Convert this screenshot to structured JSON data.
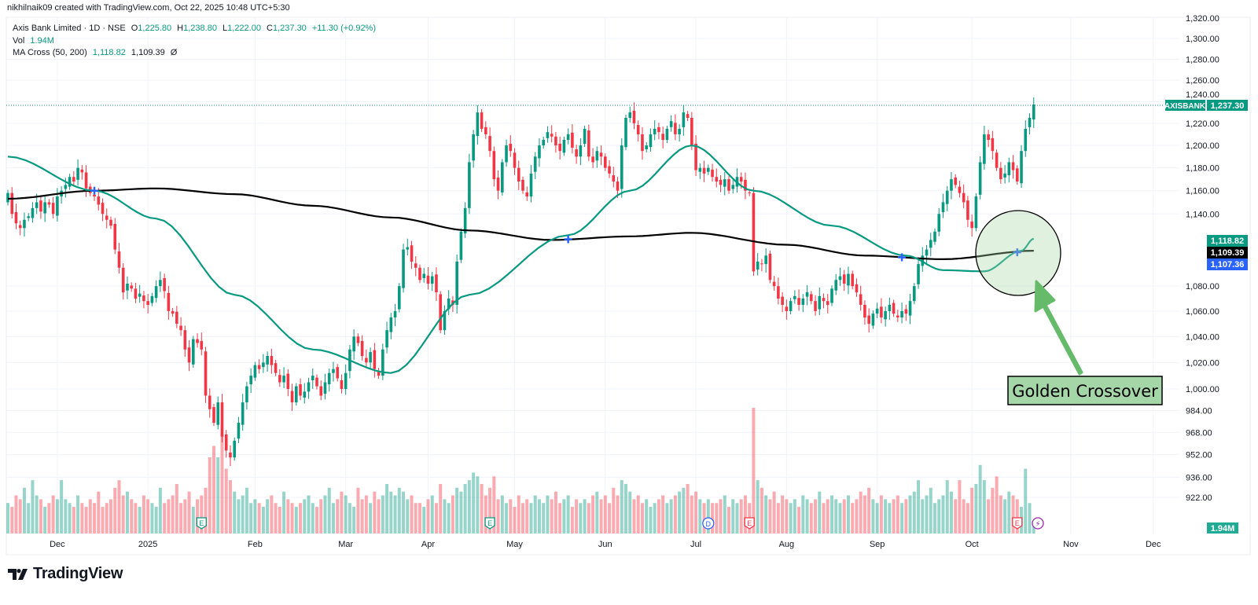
{
  "credit": "nikhilnaik09 created with TradingView.com, Oct 22, 2025 10:48 UTC+5:30",
  "legend": {
    "symbol": "Axis Bank Limited · 1D · NSE",
    "o_label": "O",
    "o": "1,225.80",
    "h_label": "H",
    "h": "1,238.80",
    "l_label": "L",
    "l": "1,222.00",
    "c_label": "C",
    "c": "1,237.30",
    "change": "+11.30 (+0.92%)",
    "vol_label": "Vol",
    "vol": "1.94M",
    "ma_label": "MA Cross (50, 200)",
    "ma50": "1,118.82",
    "ma200": "1,109.39",
    "ma_icon": "Ø"
  },
  "price_badges": {
    "symbol_tag": "AXISBANK",
    "last": "1,237.30",
    "ma50": "1,118.82",
    "ma200": "1,109.39",
    "blue": "1,107.36",
    "volume": "1.94M"
  },
  "annotation": {
    "text": "Golden Crossover"
  },
  "brand": "TradingView",
  "colors": {
    "up": "#089981",
    "down": "#f23645",
    "ma50": "#089981",
    "ma200": "#000000",
    "cross": "#2962ff",
    "annot_fill": "#a5d6a7",
    "arrow": "#66bb6a"
  },
  "chart_data": {
    "type": "candlestick",
    "title": "Axis Bank Limited · 1D · NSE",
    "scale": "log",
    "ylim": [
      905,
      1322
    ],
    "yticks": [
      "1,320.00",
      "1,300.00",
      "1,280.00",
      "1,260.00",
      "1,240.00",
      "1,220.00",
      "1,200.00",
      "1,180.00",
      "1,160.00",
      "1,140.00",
      "1,080.00",
      "1,060.00",
      "1,040.00",
      "1,020.00",
      "1,000.00",
      "984.00",
      "968.00",
      "952.00",
      "936.00",
      "922.00"
    ],
    "ytick_values": [
      1320,
      1300,
      1280,
      1260,
      1240,
      1220,
      1200,
      1180,
      1160,
      1140,
      1080,
      1060,
      1040,
      1020,
      1000,
      984,
      968,
      952,
      936,
      922
    ],
    "xticks": [
      {
        "label": "Dec",
        "index": 12
      },
      {
        "label": "2025",
        "index": 34
      },
      {
        "label": "Feb",
        "index": 60
      },
      {
        "label": "Mar",
        "index": 82
      },
      {
        "label": "Apr",
        "index": 102
      },
      {
        "label": "May",
        "index": 123
      },
      {
        "label": "Jun",
        "index": 145
      },
      {
        "label": "Jul",
        "index": 167
      },
      {
        "label": "Aug",
        "index": 189
      },
      {
        "label": "Sep",
        "index": 211
      },
      {
        "label": "Oct",
        "index": 234
      },
      {
        "label": "Nov",
        "index": 258
      },
      {
        "label": "Dec",
        "index": 278
      }
    ],
    "wick_pct": 0.006,
    "closes": [
      1158,
      1140,
      1132,
      1128,
      1135,
      1138,
      1145,
      1150,
      1142,
      1150,
      1148,
      1140,
      1155,
      1160,
      1165,
      1172,
      1168,
      1180,
      1176,
      1162,
      1158,
      1155,
      1148,
      1140,
      1135,
      1130,
      1110,
      1095,
      1075,
      1082,
      1078,
      1070,
      1074,
      1068,
      1065,
      1072,
      1080,
      1085,
      1076,
      1060,
      1058,
      1050,
      1045,
      1030,
      1020,
      1038,
      1035,
      1030,
      995,
      985,
      975,
      990,
      965,
      955,
      950,
      962,
      975,
      990,
      1002,
      1010,
      1018,
      1015,
      1020,
      1025,
      1018,
      1012,
      1005,
      1010,
      1000,
      990,
      1002,
      995,
      998,
      1005,
      1010,
      1002,
      995,
      1005,
      1012,
      1015,
      1008,
      1000,
      1012,
      1030,
      1040,
      1035,
      1025,
      1020,
      1028,
      1015,
      1010,
      1030,
      1045,
      1055,
      1060,
      1080,
      1110,
      1112,
      1100,
      1095,
      1085,
      1090,
      1082,
      1088,
      1075,
      1045,
      1060,
      1070,
      1065,
      1100,
      1125,
      1145,
      1185,
      1210,
      1230,
      1215,
      1210,
      1195,
      1170,
      1160,
      1185,
      1200,
      1195,
      1180,
      1168,
      1160,
      1155,
      1175,
      1190,
      1200,
      1205,
      1212,
      1208,
      1200,
      1195,
      1205,
      1210,
      1198,
      1190,
      1200,
      1215,
      1190,
      1185,
      1195,
      1190,
      1180,
      1175,
      1168,
      1160,
      1200,
      1225,
      1230,
      1220,
      1210,
      1195,
      1200,
      1210,
      1215,
      1212,
      1205,
      1215,
      1222,
      1210,
      1215,
      1230,
      1225,
      1200,
      1178,
      1180,
      1175,
      1180,
      1172,
      1168,
      1165,
      1170,
      1160,
      1165,
      1172,
      1168,
      1160,
      1158,
      1092,
      1100,
      1098,
      1105,
      1085,
      1080,
      1070,
      1065,
      1060,
      1068,
      1072,
      1065,
      1070,
      1075,
      1068,
      1060,
      1072,
      1068,
      1065,
      1078,
      1085,
      1088,
      1082,
      1090,
      1080,
      1075,
      1065,
      1055,
      1050,
      1058,
      1062,
      1055,
      1060,
      1065,
      1058,
      1055,
      1060,
      1058,
      1068,
      1080,
      1098,
      1105,
      1110,
      1118,
      1125,
      1140,
      1150,
      1160,
      1170,
      1165,
      1158,
      1150,
      1135,
      1128,
      1155,
      1185,
      1210,
      1205,
      1195,
      1180,
      1170,
      1175,
      1185,
      1178,
      1168,
      1195,
      1215,
      1225,
      1237.3
    ],
    "volumes_m": [
      8,
      7,
      10,
      9,
      12,
      8,
      14,
      10,
      9,
      7,
      8,
      10,
      9,
      14,
      9,
      8,
      7,
      10,
      8,
      7,
      9,
      8,
      11,
      7,
      8,
      9,
      12,
      14,
      10,
      11,
      9,
      8,
      7,
      10,
      9,
      8,
      7,
      12,
      8,
      9,
      10,
      13,
      8,
      9,
      11,
      7,
      9,
      10,
      12,
      20,
      23,
      20,
      26,
      17,
      14,
      11,
      9,
      10,
      12,
      8,
      9,
      8,
      7,
      9,
      10,
      8,
      7,
      11,
      9,
      8,
      7,
      8,
      9,
      10,
      8,
      7,
      9,
      10,
      12,
      8,
      9,
      11,
      10,
      8,
      7,
      12,
      9,
      10,
      8,
      11,
      9,
      10,
      13,
      11,
      10,
      12,
      11,
      9,
      10,
      8,
      8,
      7,
      9,
      10,
      8,
      13,
      9,
      8,
      10,
      12,
      11,
      13,
      14,
      16,
      15,
      13,
      10,
      12,
      15,
      9,
      10,
      8,
      9,
      7,
      10,
      8,
      9,
      8,
      10,
      9,
      8,
      10,
      9,
      11,
      8,
      9,
      10,
      7,
      9,
      8,
      9,
      8,
      10,
      11,
      9,
      10,
      8,
      12,
      10,
      14,
      13,
      11,
      9,
      10,
      8,
      9,
      7,
      8,
      9,
      10,
      8,
      9,
      10,
      11,
      12,
      13,
      10,
      11,
      9,
      8,
      9,
      8,
      8,
      9,
      10,
      7,
      9,
      8,
      9,
      10,
      8,
      33,
      14,
      12,
      10,
      9,
      11,
      8,
      10,
      9,
      8,
      9,
      7,
      10,
      9,
      8,
      9,
      11,
      8,
      9,
      10,
      9,
      8,
      9,
      10,
      8,
      9,
      11,
      10,
      12,
      9,
      8,
      10,
      9,
      8,
      9,
      10,
      8,
      9,
      10,
      11,
      14,
      9,
      10,
      12,
      8,
      9,
      10,
      14,
      11,
      9,
      14,
      9,
      8,
      12,
      13,
      18,
      14,
      9,
      12,
      15,
      10,
      9,
      11,
      10,
      9,
      7,
      17,
      8,
      1.94
    ],
    "ma50_points": [
      [
        0,
        1190
      ],
      [
        21,
        1160
      ],
      [
        36,
        1136
      ],
      [
        55,
        1073
      ],
      [
        74,
        1030
      ],
      [
        93,
        1012
      ],
      [
        112,
        1073
      ],
      [
        136,
        1122
      ],
      [
        151,
        1160
      ],
      [
        166,
        1200
      ],
      [
        181,
        1160
      ],
      [
        200,
        1130
      ],
      [
        218,
        1105
      ],
      [
        227,
        1093
      ],
      [
        237,
        1092
      ],
      [
        246,
        1109
      ],
      [
        249,
        1119
      ]
    ],
    "ma200_points": [
      [
        0,
        1153
      ],
      [
        21,
        1160
      ],
      [
        36,
        1162
      ],
      [
        55,
        1157
      ],
      [
        74,
        1147
      ],
      [
        93,
        1137
      ],
      [
        112,
        1126
      ],
      [
        132,
        1118
      ],
      [
        151,
        1121
      ],
      [
        166,
        1124
      ],
      [
        189,
        1114
      ],
      [
        208,
        1105
      ],
      [
        227,
        1102
      ],
      [
        249,
        1109
      ]
    ],
    "cross_indices": [
      21,
      136,
      217,
      245
    ],
    "events": [
      {
        "type": "E",
        "index": 47
      },
      {
        "type": "E",
        "index": 117
      },
      {
        "type": "D",
        "index": 170
      },
      {
        "type": "E",
        "index": 180
      },
      {
        "type": "E",
        "index": 245
      },
      {
        "type": "⚡",
        "index": 250
      }
    ]
  }
}
